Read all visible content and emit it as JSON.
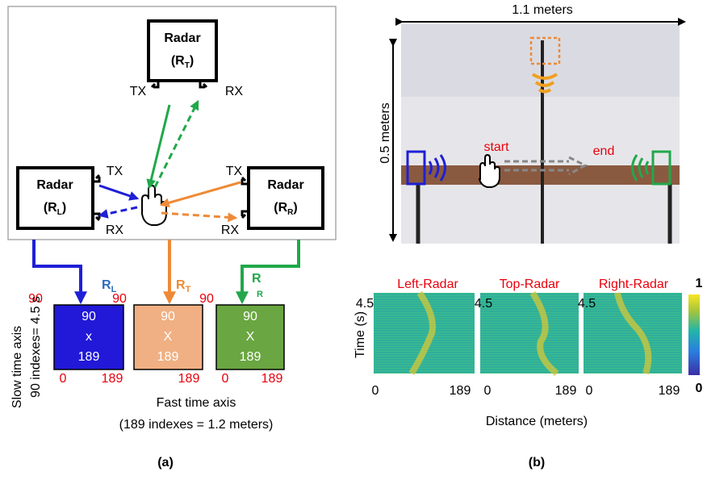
{
  "panel_a": {
    "radars": [
      {
        "title": "Radar",
        "label": [
          "(R",
          "T",
          ")"
        ],
        "tx": "TX",
        "rx": "RX"
      },
      {
        "title": "Radar",
        "label": [
          "(R",
          "L",
          ")"
        ],
        "tx": "TX",
        "rx": "RX"
      },
      {
        "title": "Radar",
        "label": [
          "(R",
          "R",
          ")"
        ],
        "tx": "TX",
        "rx": "RX"
      }
    ],
    "matrices": [
      {
        "name": "R",
        "sub": "L",
        "rows": 90,
        "op": "x",
        "cols": 189,
        "row_label": 90,
        "x_start": 0,
        "x_end": 189
      },
      {
        "name": "R",
        "sub": "T",
        "rows": 90,
        "op": "X",
        "cols": 189,
        "row_label": 90,
        "x_end": 189
      },
      {
        "name": "R",
        "sub": "R",
        "rows": 90,
        "op": "X",
        "cols": 189,
        "row_label": 90,
        "x_start": 0,
        "x_end": 189
      }
    ],
    "y_axis_title": "Slow time axis",
    "y_axis_note": "90 indexes= 4.5 s",
    "x_axis_title": "Fast time axis",
    "x_axis_note": "(189 indexes = 1.2 meters)",
    "caption": "(a)"
  },
  "panel_b": {
    "width_label": "1.1 meters",
    "height_label": "0.5 meters",
    "start": "start",
    "end": "end",
    "heatmaps": [
      {
        "title": "Left-Radar",
        "y_top": 4.5,
        "x_start": 0,
        "x_end": 189
      },
      {
        "title": "Top-Radar",
        "y_top": 4.5,
        "x_start": 0,
        "x_end": 189
      },
      {
        "title": "Right-Radar",
        "y_top": 4.5,
        "x_start": 0,
        "x_end": 189
      }
    ],
    "y_axis_title": "Time (s)",
    "x_axis_title": "Distance (meters)",
    "colorbar": {
      "max": 1,
      "min": 0
    },
    "caption": "(b)"
  }
}
